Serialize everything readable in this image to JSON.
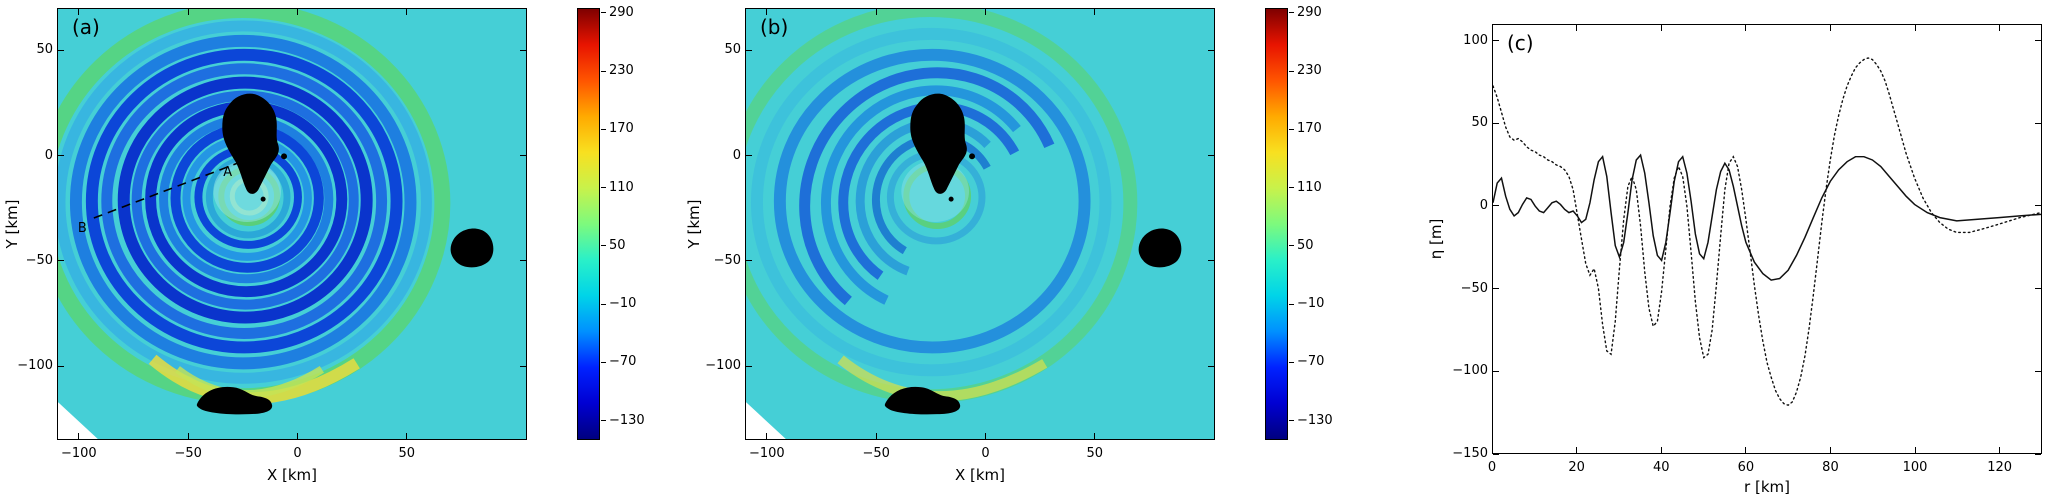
{
  "figure": {
    "panel_labels": {
      "a": "(a)",
      "b": "(b)",
      "c": "(c)"
    },
    "map_xlabel": "X [km]",
    "map_ylabel": "Y [km]",
    "profile_xlabel": "r [km]",
    "profile_ylabel": "η [m]",
    "transect": {
      "A": "A",
      "B": "B"
    },
    "sea_color": "#45cfd6",
    "land_color": "#000000",
    "colorbar": {
      "ticks": [
        290,
        230,
        170,
        110,
        50,
        -10,
        -70,
        -130
      ],
      "range": [
        -150,
        295
      ],
      "colormap": "jet",
      "gradient_colors": [
        "#00007f",
        "#0000d2",
        "#0022ff",
        "#0090ff",
        "#00d4e8",
        "#2af0c8",
        "#7dfa7d",
        "#c8f24b",
        "#f8e020",
        "#ffaa00",
        "#ff5500",
        "#e81400",
        "#7f0000"
      ]
    }
  },
  "chart_data": [
    {
      "type": "heatmap",
      "panel": "a",
      "title": "",
      "xlabel": "X [km]",
      "ylabel": "Y [km]",
      "xlim": [
        -110,
        105
      ],
      "ylim": [
        -135,
        70
      ],
      "x_ticks": [
        -100,
        -50,
        0,
        50
      ],
      "y_ticks": [
        -100,
        -50,
        0,
        50
      ],
      "colormap": "jet",
      "colorbar_ticks": [
        290,
        230,
        170,
        110,
        50,
        -10,
        -70,
        -130
      ],
      "colorbar_range": [
        -150,
        295
      ],
      "annotations": [
        {
          "label": "A",
          "x": -25,
          "y": 0
        },
        {
          "label": "B",
          "x": -95,
          "y": -28
        }
      ]
    },
    {
      "type": "heatmap",
      "panel": "b",
      "title": "",
      "xlabel": "X [km]",
      "ylabel": "Y [km]",
      "xlim": [
        -110,
        105
      ],
      "ylim": [
        -135,
        70
      ],
      "x_ticks": [
        -100,
        -50,
        0,
        50
      ],
      "y_ticks": [
        -100,
        -50,
        0,
        50
      ],
      "colormap": "jet",
      "colorbar_ticks": [
        290,
        230,
        170,
        110,
        50,
        -10,
        -70,
        -130
      ],
      "colorbar_range": [
        -150,
        295
      ],
      "annotations": []
    },
    {
      "type": "line",
      "panel": "c",
      "title": "",
      "xlabel": "r [km]",
      "ylabel": "η [m]",
      "xlim": [
        0,
        130
      ],
      "ylim": [
        -150,
        110
      ],
      "x_ticks": [
        0,
        20,
        40,
        60,
        80,
        100,
        120
      ],
      "y_ticks": [
        -150,
        -100,
        -50,
        0,
        50,
        100
      ],
      "grid": false,
      "legend": null,
      "series": [
        {
          "name": "solid-curve",
          "style": "solid",
          "x": [
            0,
            1,
            2,
            3,
            4,
            5,
            6,
            7,
            8,
            9,
            10,
            11,
            12,
            13,
            14,
            15,
            16,
            17,
            18,
            19,
            20,
            21,
            22,
            23,
            24,
            25,
            26,
            27,
            28,
            29,
            30,
            31,
            32,
            33,
            34,
            35,
            36,
            37,
            38,
            39,
            40,
            41,
            42,
            43,
            44,
            45,
            46,
            47,
            48,
            49,
            50,
            51,
            52,
            53,
            54,
            55,
            56,
            57,
            58,
            59,
            60,
            62,
            64,
            66,
            68,
            70,
            72,
            74,
            76,
            78,
            80,
            82,
            84,
            86,
            88,
            90,
            92,
            94,
            96,
            98,
            100,
            103,
            106,
            110,
            115,
            120,
            125,
            130
          ],
          "y": [
            2,
            14,
            17,
            6,
            -2,
            -6,
            -4,
            1,
            5,
            4,
            0,
            -3,
            -4,
            -1,
            2,
            3,
            1,
            -2,
            -4,
            -3,
            -6,
            -10,
            -8,
            2,
            16,
            27,
            30,
            18,
            -4,
            -24,
            -31,
            -22,
            -4,
            16,
            28,
            31,
            20,
            2,
            -18,
            -30,
            -33,
            -22,
            -4,
            15,
            27,
            30,
            20,
            3,
            -17,
            -29,
            -32,
            -22,
            -6,
            10,
            21,
            26,
            22,
            12,
            0,
            -12,
            -22,
            -34,
            -41,
            -45,
            -44,
            -39,
            -30,
            -19,
            -7,
            5,
            15,
            22,
            27,
            30,
            30,
            28,
            24,
            18,
            12,
            6,
            1,
            -4,
            -7,
            -9,
            -8,
            -7,
            -6,
            -5
          ]
        },
        {
          "name": "dotted-curve",
          "style": "dotted",
          "x": [
            0,
            1,
            2,
            3,
            4,
            5,
            6,
            7,
            8,
            9,
            10,
            11,
            12,
            13,
            14,
            15,
            16,
            17,
            18,
            19,
            20,
            21,
            22,
            23,
            24,
            25,
            26,
            27,
            28,
            29,
            30,
            31,
            32,
            33,
            34,
            35,
            36,
            37,
            38,
            39,
            40,
            41,
            42,
            43,
            44,
            45,
            46,
            47,
            48,
            49,
            50,
            51,
            52,
            53,
            54,
            55,
            56,
            57,
            58,
            59,
            60,
            61,
            62,
            63,
            64,
            65,
            66,
            67,
            68,
            69,
            70,
            71,
            72,
            73,
            74,
            75,
            76,
            77,
            78,
            79,
            80,
            81,
            82,
            83,
            84,
            85,
            86,
            87,
            88,
            89,
            90,
            91,
            92,
            93,
            94,
            95,
            96,
            97,
            98,
            100,
            102,
            104,
            106,
            108,
            110,
            113,
            116,
            120,
            125,
            130
          ],
          "y": [
            73,
            66,
            57,
            48,
            42,
            40,
            41,
            39,
            36,
            34,
            33,
            31,
            30,
            28,
            27,
            25,
            24,
            22,
            18,
            10,
            -5,
            -20,
            -35,
            -42,
            -38,
            -50,
            -72,
            -88,
            -90,
            -70,
            -38,
            -8,
            12,
            18,
            10,
            -12,
            -40,
            -62,
            -73,
            -70,
            -52,
            -26,
            0,
            17,
            24,
            18,
            0,
            -28,
            -58,
            -80,
            -92,
            -90,
            -75,
            -48,
            -18,
            10,
            26,
            30,
            24,
            10,
            -8,
            -28,
            -48,
            -66,
            -82,
            -95,
            -104,
            -112,
            -117,
            -120,
            -121,
            -119,
            -113,
            -104,
            -91,
            -74,
            -54,
            -32,
            -10,
            10,
            28,
            43,
            55,
            65,
            73,
            79,
            84,
            87,
            89,
            90,
            89,
            86,
            82,
            76,
            68,
            59,
            50,
            41,
            32,
            17,
            5,
            -4,
            -10,
            -14,
            -16,
            -16,
            -14,
            -11,
            -7,
            -4
          ]
        }
      ]
    }
  ]
}
